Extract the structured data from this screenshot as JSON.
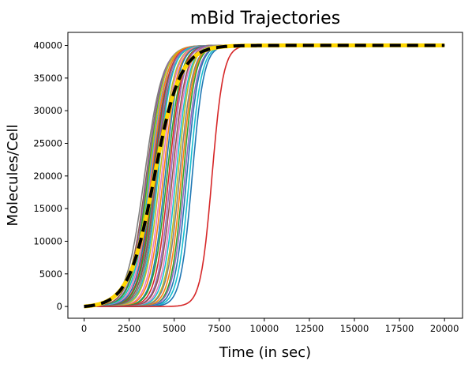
{
  "chart_data": {
    "type": "line",
    "title": "mBid Trajectories",
    "xlabel": "Time (in sec)",
    "ylabel": "Molecules/Cell",
    "xlim": [
      -900,
      21000
    ],
    "ylim": [
      -1800,
      42000
    ],
    "x_ticks": [
      0,
      2500,
      5000,
      7500,
      10000,
      12500,
      15000,
      17500,
      20000
    ],
    "y_ticks": [
      0,
      5000,
      10000,
      15000,
      20000,
      25000,
      30000,
      35000,
      40000
    ],
    "grid": false,
    "legend": "none",
    "x_end": 20000,
    "plateau": 40000,
    "mean_trajectory": {
      "midpoint": 3900,
      "steepness": 0.0014,
      "colors": [
        "#ffd700",
        "#000000"
      ],
      "style": "dashed"
    },
    "trajectories": [
      {
        "midpoint": 3350,
        "steepness": 0.002,
        "color": "#7f7f7f"
      },
      {
        "midpoint": 3450,
        "steepness": 0.0021,
        "color": "#8c564b"
      },
      {
        "midpoint": 3500,
        "steepness": 0.0022,
        "color": "#9467bd"
      },
      {
        "midpoint": 3550,
        "steepness": 0.0022,
        "color": "#2ca02c"
      },
      {
        "midpoint": 3600,
        "steepness": 0.0023,
        "color": "#bcbd22"
      },
      {
        "midpoint": 3650,
        "steepness": 0.0022,
        "color": "#17becf"
      },
      {
        "midpoint": 3700,
        "steepness": 0.0023,
        "color": "#e377c2"
      },
      {
        "midpoint": 3750,
        "steepness": 0.0024,
        "color": "#ff7f0e"
      },
      {
        "midpoint": 3800,
        "steepness": 0.0023,
        "color": "#1f77b4"
      },
      {
        "midpoint": 3850,
        "steepness": 0.0024,
        "color": "#d62728"
      },
      {
        "midpoint": 3900,
        "steepness": 0.0024,
        "color": "#2ca02c"
      },
      {
        "midpoint": 3950,
        "steepness": 0.0025,
        "color": "#9467bd"
      },
      {
        "midpoint": 4000,
        "steepness": 0.0024,
        "color": "#8c564b"
      },
      {
        "midpoint": 4050,
        "steepness": 0.0025,
        "color": "#7f7f7f"
      },
      {
        "midpoint": 4100,
        "steepness": 0.0026,
        "color": "#17becf"
      },
      {
        "midpoint": 4200,
        "steepness": 0.0025,
        "color": "#bcbd22"
      },
      {
        "midpoint": 4300,
        "steepness": 0.0026,
        "color": "#e377c2"
      },
      {
        "midpoint": 4400,
        "steepness": 0.0026,
        "color": "#ff7f0e"
      },
      {
        "midpoint": 4500,
        "steepness": 0.0027,
        "color": "#1f77b4"
      },
      {
        "midpoint": 4600,
        "steepness": 0.0026,
        "color": "#2ca02c"
      },
      {
        "midpoint": 4700,
        "steepness": 0.0027,
        "color": "#d62728"
      },
      {
        "midpoint": 4800,
        "steepness": 0.0028,
        "color": "#9467bd"
      },
      {
        "midpoint": 4900,
        "steepness": 0.0027,
        "color": "#8c564b"
      },
      {
        "midpoint": 5000,
        "steepness": 0.0028,
        "color": "#e377c2"
      },
      {
        "midpoint": 5100,
        "steepness": 0.0028,
        "color": "#17becf"
      },
      {
        "midpoint": 5200,
        "steepness": 0.0029,
        "color": "#bcbd22"
      },
      {
        "midpoint": 5300,
        "steepness": 0.0028,
        "color": "#7f7f7f"
      },
      {
        "midpoint": 5400,
        "steepness": 0.0029,
        "color": "#ff7f0e"
      },
      {
        "midpoint": 5500,
        "steepness": 0.003,
        "color": "#2ca02c"
      },
      {
        "midpoint": 5600,
        "steepness": 0.0029,
        "color": "#9467bd"
      },
      {
        "midpoint": 5700,
        "steepness": 0.003,
        "color": "#1f77b4"
      },
      {
        "midpoint": 5850,
        "steepness": 0.003,
        "color": "#17becf"
      },
      {
        "midpoint": 6000,
        "steepness": 0.0031,
        "color": "#1f77b4"
      },
      {
        "midpoint": 7100,
        "steepness": 0.0032,
        "color": "#d62728"
      }
    ]
  }
}
